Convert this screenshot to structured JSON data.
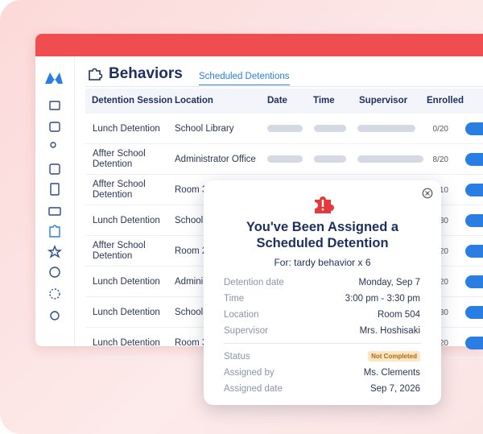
{
  "header": {
    "title": "Behaviors",
    "tab": "Scheduled Detentions"
  },
  "table": {
    "columns": [
      "Detention Session",
      "Location",
      "Date",
      "Time",
      "Supervisor",
      "Enrolled"
    ],
    "rows": [
      [
        "Lunch Detention",
        "School Library",
        "0/20"
      ],
      [
        "Affter School Detention",
        "Administrator Office",
        "8/20"
      ],
      [
        "Affter School Detention",
        "Room 3",
        "/10"
      ],
      [
        "Lunch Detention",
        "School",
        "30"
      ],
      [
        "Affter School Detention",
        "Room 2",
        "20"
      ],
      [
        "Lunch Detention",
        "Admini",
        "20"
      ],
      [
        "Lunch Detention",
        "School",
        "30"
      ],
      [
        "Lunch Detention",
        "Room 3",
        "20"
      ]
    ]
  },
  "modal": {
    "title": "You've Been Assigned a Scheduled Detention",
    "subtitle": "For: tardy behavior x 6",
    "details": [
      {
        "label": "Detention date",
        "value": "Monday, Sep 7"
      },
      {
        "label": "Time",
        "value": "3:00 pm - 3:30 pm"
      },
      {
        "label": "Location",
        "value": "Room 504"
      },
      {
        "label": "Supervisor",
        "value": "Mrs. Hoshisaki"
      }
    ],
    "status": {
      "label": "Status",
      "value": "Not Completed"
    },
    "assignment": [
      {
        "label": "Assigned by",
        "value": "Ms. Clements"
      },
      {
        "label": "Assigned date",
        "value": "Sep 7, 2026"
      }
    ]
  }
}
